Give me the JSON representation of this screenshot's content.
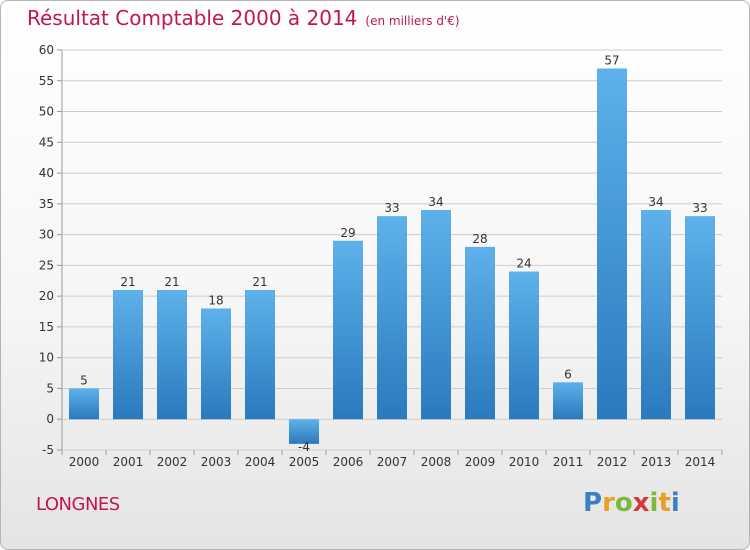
{
  "title": "Résultat Comptable 2000 à 2014",
  "subtitle": "(en milliers d'€)",
  "place": "LONGNES",
  "logo": "Proxiti",
  "colors": {
    "bar_top": "#5eb1ea",
    "bar_bottom": "#2a79bd",
    "grid": "#cccccc",
    "title": "#c0184e"
  },
  "chart_data": {
    "type": "bar",
    "title": "Résultat Comptable 2000 à 2014",
    "xlabel": "",
    "ylabel": "",
    "categories": [
      "2000",
      "2001",
      "2002",
      "2003",
      "2004",
      "2005",
      "2006",
      "2007",
      "2008",
      "2009",
      "2010",
      "2011",
      "2012",
      "2013",
      "2014"
    ],
    "values": [
      5,
      21,
      21,
      18,
      21,
      -4,
      29,
      33,
      34,
      28,
      24,
      6,
      57,
      34,
      33
    ],
    "data_labels": [
      "5",
      "21",
      "21",
      "18",
      "21",
      "-4",
      "29",
      "33",
      "34",
      "28",
      "24",
      "6",
      "57",
      "34",
      "33"
    ],
    "ylim": [
      -5,
      60
    ],
    "yticks": [
      -5,
      0,
      5,
      10,
      15,
      20,
      25,
      30,
      35,
      40,
      45,
      50,
      55,
      60
    ],
    "grid": true
  }
}
